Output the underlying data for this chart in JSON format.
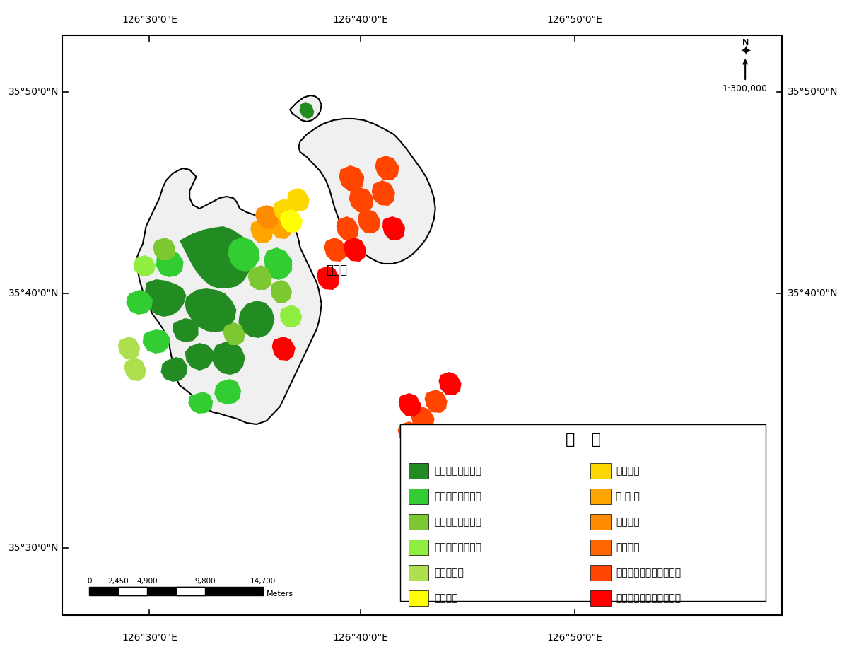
{
  "title": "",
  "map_label": "부안군",
  "scale_label": "1:300,000",
  "legend_title": "범   례",
  "legend_items_left": [
    {
      "label": "갈색건조산림토양",
      "color": "#228B22"
    },
    {
      "label": "갈색약건산림토양",
      "color": "#32CD32"
    },
    {
      "label": "갈색적윤산림토양",
      "color": "#7DC832"
    },
    {
      "label": "갈색약습산림토양",
      "color": "#90EE40"
    },
    {
      "label": "약침식토양",
      "color": "#ADDF4F"
    },
    {
      "label": "미숙토양",
      "color": "#FFFF00"
    }
  ],
  "legend_items_right": [
    {
      "label": "암쌌토양",
      "color": "#FFD700"
    },
    {
      "label": "목 초 지",
      "color": "#FFA500"
    },
    {
      "label": "군사지역",
      "color": "#FF8C00"
    },
    {
      "label": "제　　지",
      "color": "#FF6600"
    },
    {
      "label": "적색계갈색건조산림토양",
      "color": "#FF4500"
    },
    {
      "label": "적색계갈색약건산림토양",
      "color": "#FF0000"
    }
  ],
  "x_ticks": [
    "126°30'0\"E",
    "126°40'0\"E",
    "126°50'0\"E"
  ],
  "y_ticks_left": [
    "35°50'0\"N",
    "35°40'0\"N",
    "35°30'0\"N"
  ],
  "y_ticks_right": [
    "35°50'0\"N",
    "35°40'0\"N"
  ],
  "scale_bar_labels": [
    "0",
    "2,450",
    "4,900",
    "9,800",
    "14,700"
  ],
  "scale_bar_unit": "Meters",
  "background_color": "#FFFFFF",
  "map_area_color": "#F5F5F5",
  "border_color": "#000000"
}
